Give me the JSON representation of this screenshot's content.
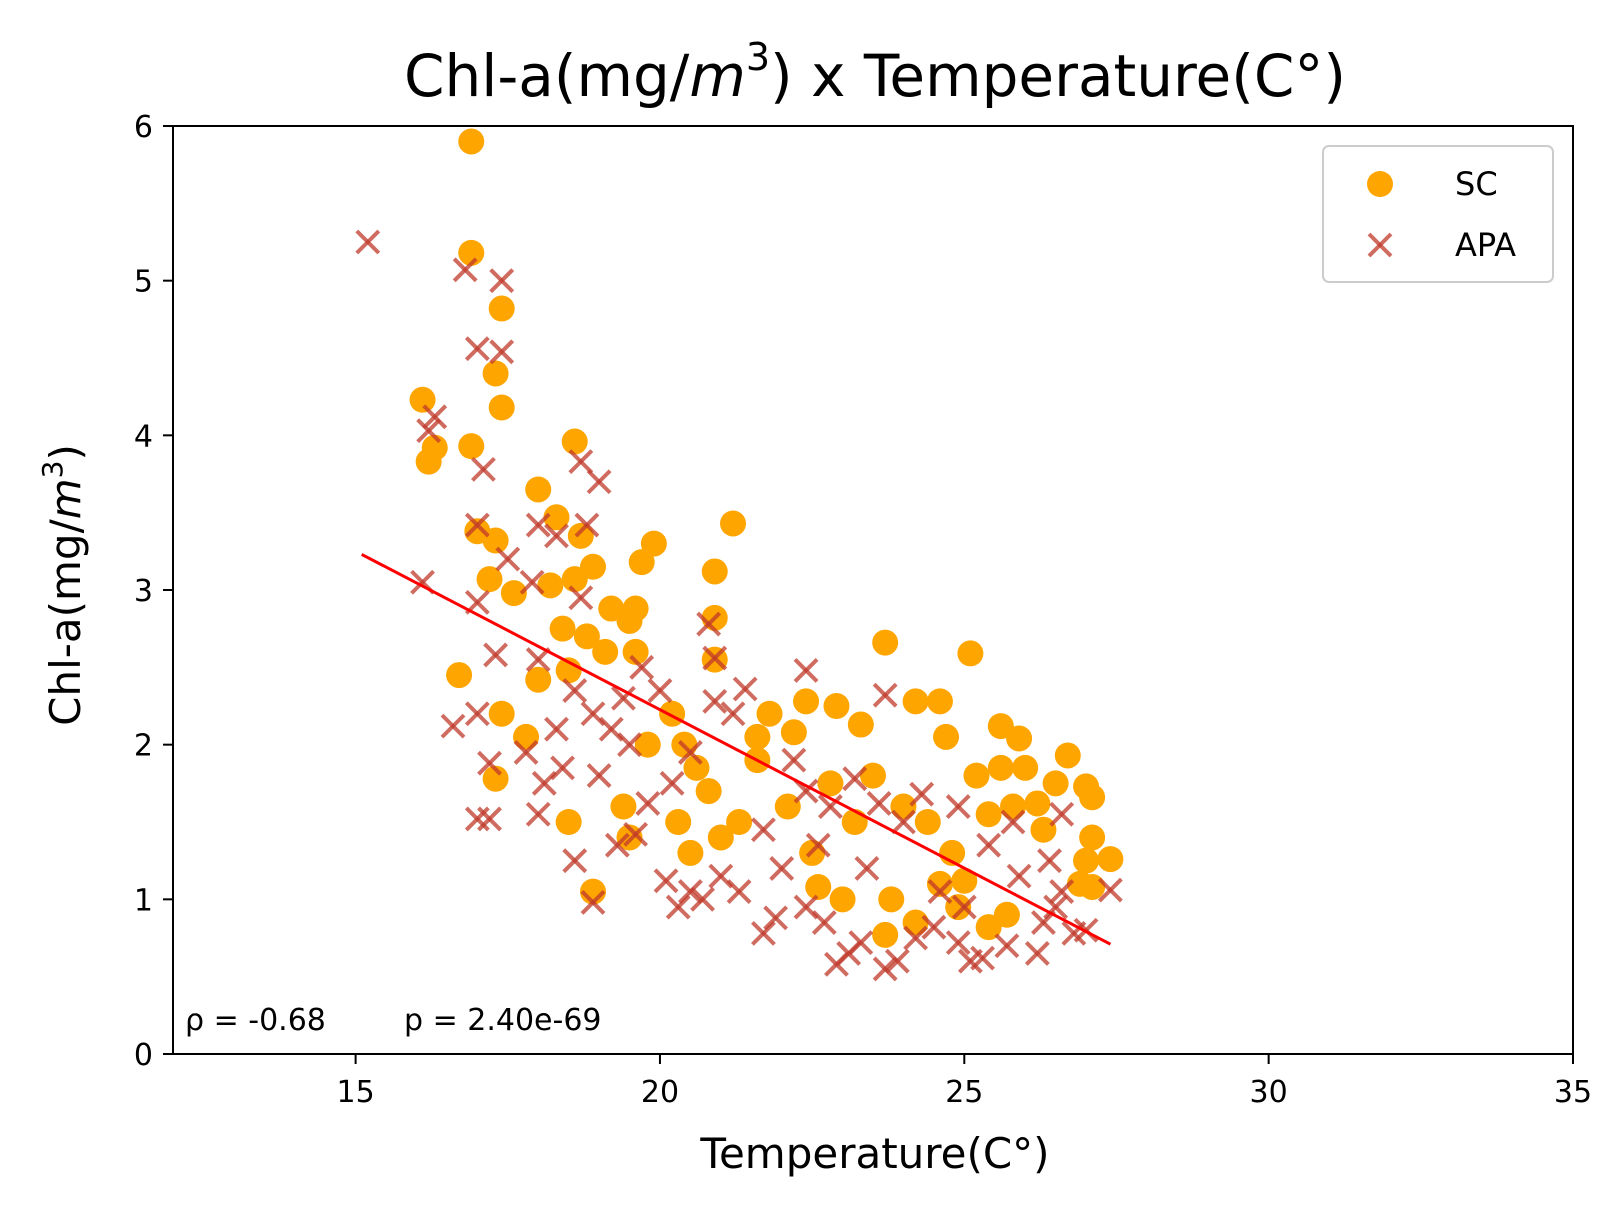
{
  "chart_data": {
    "type": "scatter",
    "title": {
      "pre": "Chl-a(mg/",
      "var": "m",
      "sup": "3",
      "post": ") x Temperature(C°)"
    },
    "xlabel": "Temperature(C°)",
    "ylabel": {
      "pre": "Chl-a(mg/",
      "var": "m",
      "sup": "3",
      "post": ")"
    },
    "xlim": [
      12,
      35
    ],
    "ylim": [
      0,
      6
    ],
    "xticks": [
      15,
      20,
      25,
      30,
      35
    ],
    "yticks": [
      0,
      1,
      2,
      3,
      4,
      5,
      6
    ],
    "grid": false,
    "legend": {
      "position": "top-right"
    },
    "annotation": {
      "rho": "ρ = -0.68",
      "p": "p = 2.40e-69"
    },
    "series": [
      {
        "name": "SC",
        "marker": "circle",
        "color": "#FFA500",
        "points": [
          [
            16.9,
            5.9
          ],
          [
            16.9,
            5.18
          ],
          [
            17.4,
            4.82
          ],
          [
            17.3,
            4.4
          ],
          [
            17.4,
            4.18
          ],
          [
            16.1,
            4.23
          ],
          [
            16.9,
            3.93
          ],
          [
            16.3,
            3.92
          ],
          [
            16.2,
            3.83
          ],
          [
            18.6,
            3.96
          ],
          [
            18.0,
            3.65
          ],
          [
            18.3,
            3.47
          ],
          [
            21.2,
            3.43
          ],
          [
            17.0,
            3.38
          ],
          [
            17.3,
            3.32
          ],
          [
            19.9,
            3.3
          ],
          [
            18.7,
            3.35
          ],
          [
            19.7,
            3.18
          ],
          [
            18.9,
            3.15
          ],
          [
            20.9,
            3.12
          ],
          [
            17.2,
            3.07
          ],
          [
            17.6,
            2.98
          ],
          [
            18.6,
            3.07
          ],
          [
            18.2,
            3.03
          ],
          [
            19.6,
            2.88
          ],
          [
            19.2,
            2.88
          ],
          [
            19.5,
            2.8
          ],
          [
            20.9,
            2.82
          ],
          [
            18.4,
            2.75
          ],
          [
            18.8,
            2.7
          ],
          [
            19.1,
            2.6
          ],
          [
            19.6,
            2.6
          ],
          [
            20.9,
            2.55
          ],
          [
            16.7,
            2.45
          ],
          [
            18.0,
            2.42
          ],
          [
            18.5,
            2.48
          ],
          [
            23.7,
            2.66
          ],
          [
            25.1,
            2.59
          ],
          [
            22.9,
            2.25
          ],
          [
            22.4,
            2.28
          ],
          [
            21.8,
            2.2
          ],
          [
            22.2,
            2.08
          ],
          [
            21.6,
            2.05
          ],
          [
            24.2,
            2.28
          ],
          [
            24.6,
            2.28
          ],
          [
            23.3,
            2.13
          ],
          [
            24.7,
            2.05
          ],
          [
            25.6,
            2.12
          ],
          [
            25.9,
            2.04
          ],
          [
            26.7,
            1.93
          ],
          [
            17.4,
            2.2
          ],
          [
            17.8,
            2.05
          ],
          [
            18.5,
            1.5
          ],
          [
            18.9,
            1.05
          ],
          [
            17.3,
            1.78
          ],
          [
            20.2,
            2.2
          ],
          [
            20.4,
            2.0
          ],
          [
            20.8,
            1.7
          ],
          [
            21.0,
            1.4
          ],
          [
            20.5,
            1.3
          ],
          [
            19.4,
            1.6
          ],
          [
            19.5,
            1.4
          ],
          [
            22.5,
            1.3
          ],
          [
            22.6,
            1.08
          ],
          [
            23.0,
            1.0
          ],
          [
            23.5,
            1.8
          ],
          [
            24.0,
            1.6
          ],
          [
            24.4,
            1.5
          ],
          [
            24.8,
            1.3
          ],
          [
            25.2,
            1.8
          ],
          [
            25.6,
            1.85
          ],
          [
            26.0,
            1.85
          ],
          [
            26.2,
            1.62
          ],
          [
            26.5,
            1.75
          ],
          [
            26.3,
            1.45
          ],
          [
            27.0,
            1.73
          ],
          [
            27.1,
            1.66
          ],
          [
            27.1,
            1.4
          ],
          [
            27.4,
            1.26
          ],
          [
            27.0,
            1.25
          ],
          [
            26.9,
            1.1
          ],
          [
            27.1,
            1.08
          ],
          [
            25.8,
            1.6
          ],
          [
            25.4,
            1.55
          ],
          [
            25.0,
            1.12
          ],
          [
            24.9,
            0.95
          ],
          [
            25.4,
            0.82
          ],
          [
            25.7,
            0.9
          ],
          [
            23.7,
            0.77
          ],
          [
            24.2,
            0.85
          ],
          [
            22.1,
            1.6
          ],
          [
            21.6,
            1.9
          ],
          [
            22.8,
            1.75
          ],
          [
            23.2,
            1.5
          ],
          [
            23.8,
            1.0
          ],
          [
            24.6,
            1.1
          ],
          [
            20.3,
            1.5
          ],
          [
            21.3,
            1.5
          ],
          [
            19.8,
            2.0
          ],
          [
            20.6,
            1.85
          ]
        ]
      },
      {
        "name": "APA",
        "marker": "x",
        "color": "#C0392B",
        "points": [
          [
            15.2,
            5.25
          ],
          [
            16.8,
            5.07
          ],
          [
            17.4,
            5.0
          ],
          [
            17.0,
            4.56
          ],
          [
            17.4,
            4.54
          ],
          [
            16.3,
            4.12
          ],
          [
            16.2,
            4.03
          ],
          [
            17.1,
            3.78
          ],
          [
            18.7,
            3.83
          ],
          [
            19.0,
            3.7
          ],
          [
            17.0,
            3.42
          ],
          [
            18.0,
            3.42
          ],
          [
            18.8,
            3.42
          ],
          [
            18.3,
            3.35
          ],
          [
            17.5,
            3.2
          ],
          [
            17.9,
            3.05
          ],
          [
            16.1,
            3.05
          ],
          [
            18.7,
            2.95
          ],
          [
            17.0,
            2.92
          ],
          [
            17.3,
            2.58
          ],
          [
            18.0,
            2.55
          ],
          [
            20.8,
            2.78
          ],
          [
            20.9,
            2.56
          ],
          [
            17.0,
            2.2
          ],
          [
            16.6,
            2.12
          ],
          [
            17.2,
            1.88
          ],
          [
            17.8,
            1.95
          ],
          [
            18.4,
            1.85
          ],
          [
            18.0,
            1.55
          ],
          [
            17.0,
            1.52
          ],
          [
            17.2,
            1.52
          ],
          [
            18.6,
            1.25
          ],
          [
            18.9,
            0.98
          ],
          [
            19.3,
            1.35
          ],
          [
            19.6,
            1.42
          ],
          [
            20.1,
            1.12
          ],
          [
            20.3,
            0.95
          ],
          [
            20.5,
            1.05
          ],
          [
            20.7,
            1.0
          ],
          [
            21.0,
            1.15
          ],
          [
            21.3,
            1.05
          ],
          [
            21.7,
            0.78
          ],
          [
            21.9,
            0.88
          ],
          [
            22.4,
            0.95
          ],
          [
            22.7,
            0.85
          ],
          [
            22.9,
            0.58
          ],
          [
            23.1,
            0.65
          ],
          [
            23.3,
            0.72
          ],
          [
            23.7,
            0.55
          ],
          [
            23.9,
            0.6
          ],
          [
            24.2,
            0.75
          ],
          [
            24.5,
            0.82
          ],
          [
            24.9,
            0.72
          ],
          [
            25.1,
            0.6
          ],
          [
            25.3,
            0.62
          ],
          [
            25.7,
            0.7
          ],
          [
            26.2,
            0.65
          ],
          [
            26.3,
            0.85
          ],
          [
            26.8,
            0.78
          ],
          [
            27.0,
            0.8
          ],
          [
            27.4,
            1.06
          ],
          [
            26.6,
            1.05
          ],
          [
            26.4,
            1.25
          ],
          [
            26.6,
            1.55
          ],
          [
            25.8,
            1.5
          ],
          [
            25.4,
            1.35
          ],
          [
            24.9,
            1.6
          ],
          [
            24.3,
            1.68
          ],
          [
            24.0,
            1.5
          ],
          [
            23.6,
            1.62
          ],
          [
            23.2,
            1.78
          ],
          [
            22.8,
            1.6
          ],
          [
            22.4,
            1.7
          ],
          [
            22.2,
            1.9
          ],
          [
            22.4,
            2.48
          ],
          [
            23.7,
            2.32
          ],
          [
            21.4,
            2.36
          ],
          [
            21.2,
            2.2
          ],
          [
            20.9,
            2.28
          ],
          [
            20.5,
            1.95
          ],
          [
            20.2,
            1.75
          ],
          [
            19.8,
            1.62
          ],
          [
            19.5,
            2.0
          ],
          [
            19.2,
            2.1
          ],
          [
            18.9,
            2.2
          ],
          [
            18.6,
            2.35
          ],
          [
            18.3,
            2.1
          ],
          [
            18.1,
            1.75
          ],
          [
            19.0,
            1.8
          ],
          [
            19.4,
            2.3
          ],
          [
            19.7,
            2.5
          ],
          [
            20.0,
            2.35
          ],
          [
            21.7,
            1.45
          ],
          [
            22.0,
            1.2
          ],
          [
            22.6,
            1.35
          ],
          [
            23.4,
            1.2
          ],
          [
            24.6,
            1.05
          ],
          [
            25.0,
            0.95
          ],
          [
            25.9,
            1.15
          ],
          [
            26.5,
            0.95
          ]
        ]
      }
    ],
    "trendline": {
      "color": "#FF0000",
      "points": [
        [
          15.1,
          3.23
        ],
        [
          27.4,
          0.71
        ]
      ]
    }
  }
}
